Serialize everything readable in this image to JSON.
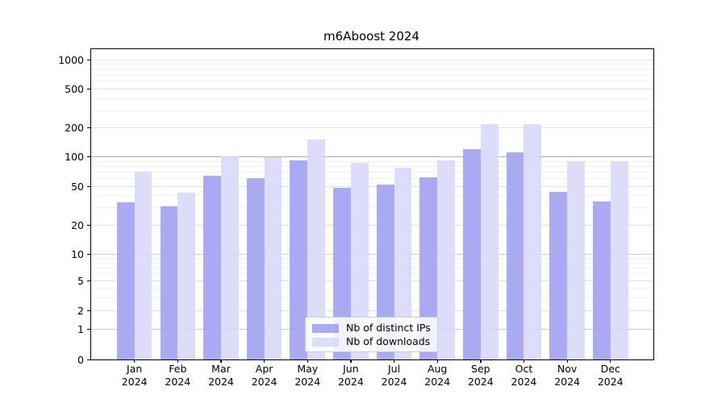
{
  "figure": {
    "title": "m6Aboost 2024"
  },
  "chart_data": {
    "type": "bar",
    "title": "m6Aboost 2024",
    "x_categories": [
      "Jan",
      "Feb",
      "Mar",
      "Apr",
      "May",
      "Jun",
      "Jul",
      "Aug",
      "Sep",
      "Oct",
      "Nov",
      "Dec"
    ],
    "x_sub_label": "2024",
    "series": [
      {
        "name": "Nb of distinct IPs",
        "color": "#9f9ff3",
        "values": [
          34,
          31,
          64,
          60,
          92,
          48,
          52,
          62,
          120,
          112,
          44,
          35
        ]
      },
      {
        "name": "Nb of downloads",
        "color": "#d8d8f8",
        "values": [
          70,
          43,
          101,
          100,
          153,
          87,
          78,
          93,
          218,
          218,
          90,
          91
        ]
      }
    ],
    "y_scale": "symlog",
    "ylim": [
      0,
      1300
    ],
    "y_ticks": [
      0,
      1,
      2,
      5,
      10,
      20,
      50,
      100,
      200,
      500,
      1000
    ],
    "y_minor_ticks": [
      3,
      4,
      6,
      7,
      8,
      9,
      30,
      40,
      60,
      70,
      80,
      90,
      300,
      400,
      600,
      700,
      800,
      900
    ],
    "grid": true,
    "legend": {
      "position": "lower-center"
    }
  }
}
